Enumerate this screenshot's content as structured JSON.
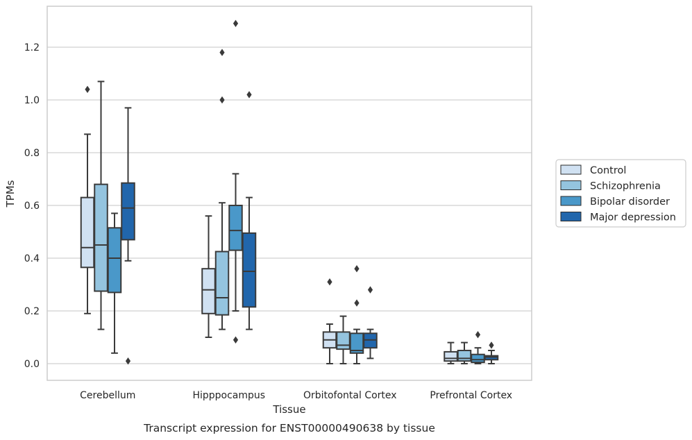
{
  "chart_data": {
    "type": "box",
    "xlabel": "Tissue",
    "ylabel": "TPMs",
    "caption": "Transcript expression for ENST00000490638 by tissue",
    "ylim": [
      -0.065,
      1.36
    ],
    "yticks": [
      0.0,
      0.2,
      0.4,
      0.6,
      0.8,
      1.0,
      1.2
    ],
    "ytick_labels": [
      "0.0",
      "0.2",
      "0.4",
      "0.6",
      "0.8",
      "1.0",
      "1.2"
    ],
    "grid": "horizontal",
    "legend_position": "right",
    "categories": [
      "Cerebellum",
      "Hipppocampus",
      "Orbitofontal Cortex",
      "Prefrontal Cortex"
    ],
    "series": [
      {
        "name": "Control",
        "color": "#d0e1f2",
        "boxes": [
          {
            "whisker_low": 0.19,
            "q1": 0.365,
            "median": 0.44,
            "q3": 0.63,
            "whisker_high": 0.87,
            "outliers": [
              1.04
            ]
          },
          {
            "whisker_low": 0.1,
            "q1": 0.19,
            "median": 0.28,
            "q3": 0.36,
            "whisker_high": 0.56,
            "outliers": []
          },
          {
            "whisker_low": 0.0,
            "q1": 0.06,
            "median": 0.09,
            "q3": 0.12,
            "whisker_high": 0.15,
            "outliers": [
              0.31
            ]
          },
          {
            "whisker_low": 0.0,
            "q1": 0.01,
            "median": 0.02,
            "q3": 0.045,
            "whisker_high": 0.08,
            "outliers": []
          }
        ]
      },
      {
        "name": "Schizophrenia",
        "color": "#94c4df",
        "boxes": [
          {
            "whisker_low": 0.13,
            "q1": 0.275,
            "median": 0.45,
            "q3": 0.68,
            "whisker_high": 1.07,
            "outliers": []
          },
          {
            "whisker_low": 0.13,
            "q1": 0.185,
            "median": 0.25,
            "q3": 0.425,
            "whisker_high": 0.61,
            "outliers": [
              1.18,
              1.0
            ]
          },
          {
            "whisker_low": 0.0,
            "q1": 0.055,
            "median": 0.07,
            "q3": 0.12,
            "whisker_high": 0.18,
            "outliers": []
          },
          {
            "whisker_low": 0.0,
            "q1": 0.01,
            "median": 0.02,
            "q3": 0.05,
            "whisker_high": 0.08,
            "outliers": []
          }
        ]
      },
      {
        "name": "Bipolar disorder",
        "color": "#4a98c9",
        "boxes": [
          {
            "whisker_low": 0.04,
            "q1": 0.27,
            "median": 0.4,
            "q3": 0.515,
            "whisker_high": 0.57,
            "outliers": []
          },
          {
            "whisker_low": 0.2,
            "q1": 0.43,
            "median": 0.505,
            "q3": 0.6,
            "whisker_high": 0.72,
            "outliers": [
              1.29,
              0.09
            ]
          },
          {
            "whisker_low": 0.0,
            "q1": 0.04,
            "median": 0.05,
            "q3": 0.115,
            "whisker_high": 0.13,
            "outliers": [
              0.36,
              0.23
            ]
          },
          {
            "whisker_low": 0.0,
            "q1": 0.005,
            "median": 0.015,
            "q3": 0.035,
            "whisker_high": 0.06,
            "outliers": [
              0.11
            ]
          }
        ]
      },
      {
        "name": "Major depression",
        "color": "#2166ac",
        "boxes": [
          {
            "whisker_low": 0.39,
            "q1": 0.47,
            "median": 0.59,
            "q3": 0.685,
            "whisker_high": 0.97,
            "outliers": [
              0.01
            ]
          },
          {
            "whisker_low": 0.13,
            "q1": 0.215,
            "median": 0.35,
            "q3": 0.495,
            "whisker_high": 0.63,
            "outliers": [
              1.02
            ]
          },
          {
            "whisker_low": 0.02,
            "q1": 0.06,
            "median": 0.09,
            "q3": 0.115,
            "whisker_high": 0.13,
            "outliers": [
              0.28
            ]
          },
          {
            "whisker_low": 0.0,
            "q1": 0.015,
            "median": 0.025,
            "q3": 0.03,
            "whisker_high": 0.05,
            "outliers": [
              0.07
            ]
          }
        ]
      }
    ]
  }
}
